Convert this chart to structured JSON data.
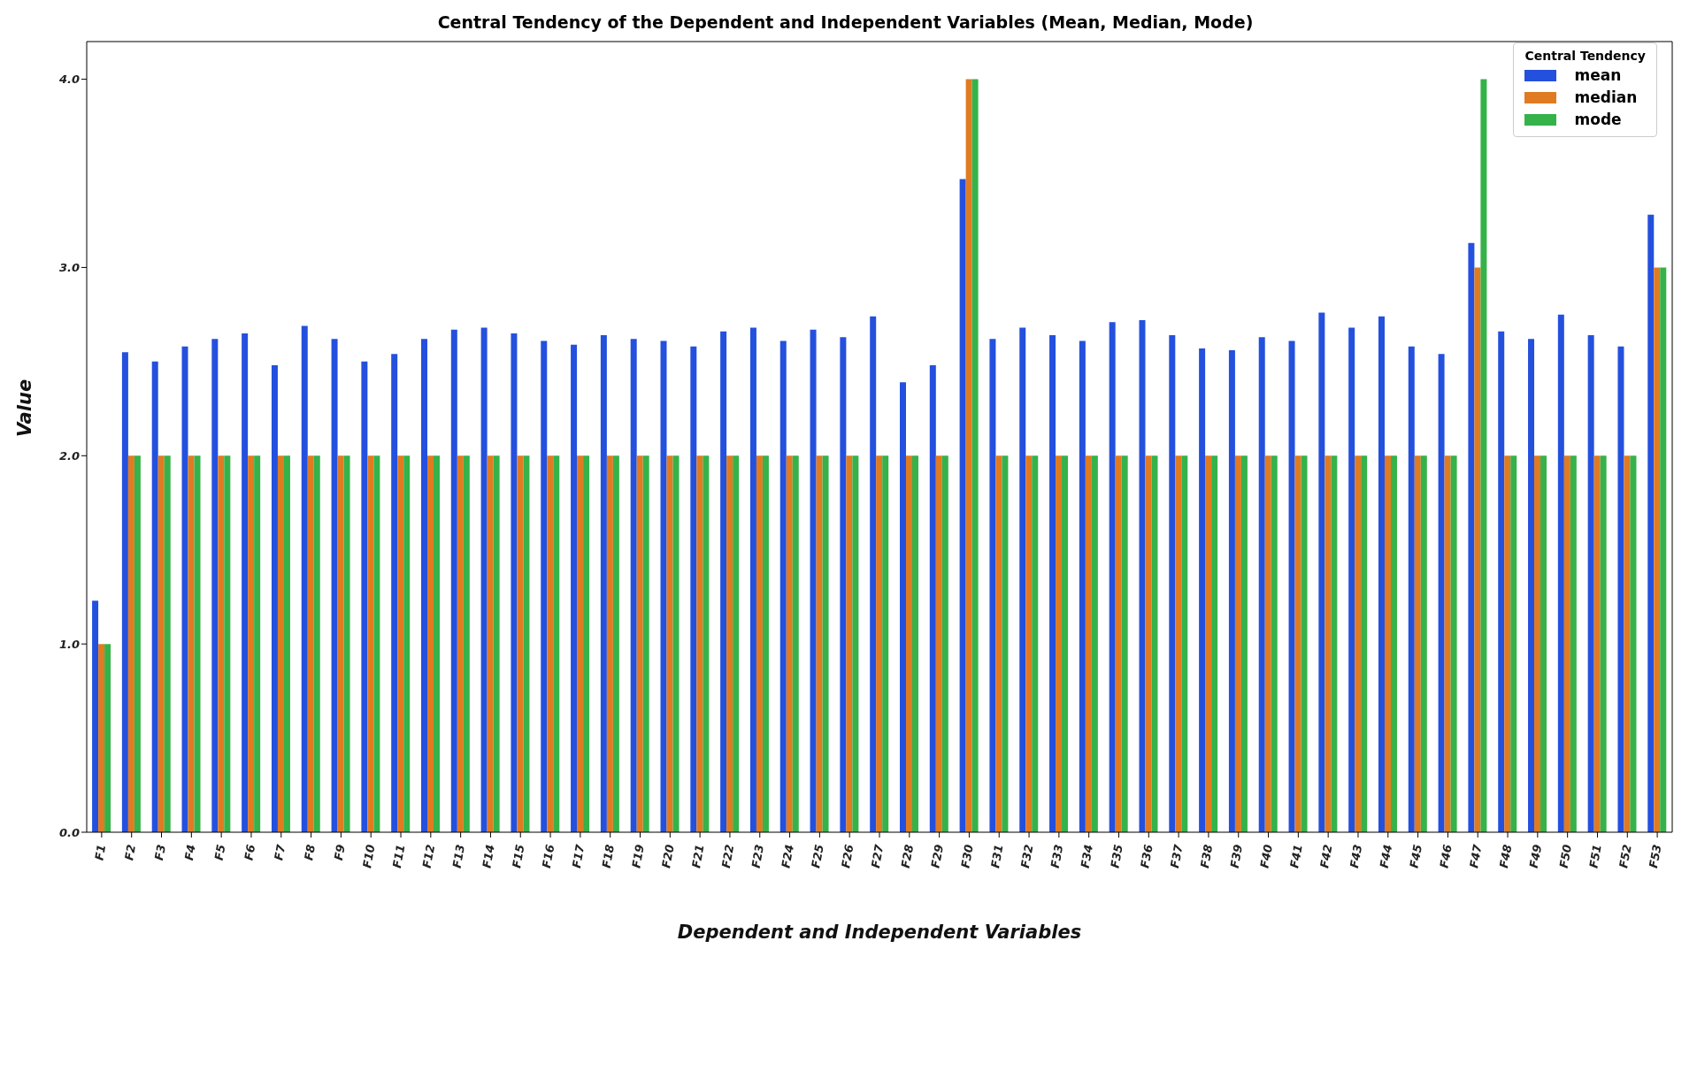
{
  "chart_data": {
    "type": "bar",
    "title": "Central Tendency of the Dependent and Independent Variables (Mean, Median, Mode)",
    "xlabel": "Dependent and Independent Variables",
    "ylabel": "Value",
    "legend_title": "Central Tendency",
    "categories": [
      "F1",
      "F2",
      "F3",
      "F4",
      "F5",
      "F6",
      "F7",
      "F8",
      "F9",
      "F10",
      "F11",
      "F12",
      "F13",
      "F14",
      "F15",
      "F16",
      "F17",
      "F18",
      "F19",
      "F20",
      "F21",
      "F22",
      "F23",
      "F24",
      "F25",
      "F26",
      "F27",
      "F28",
      "F29",
      "F30",
      "F31",
      "F32",
      "F33",
      "F34",
      "F35",
      "F36",
      "F37",
      "F38",
      "F39",
      "F40",
      "F41",
      "F42",
      "F43",
      "F44",
      "F45",
      "F46",
      "F47",
      "F48",
      "F49",
      "F50",
      "F51",
      "F52",
      "F53"
    ],
    "series": [
      {
        "name": "mean",
        "color": "#2450de",
        "values": [
          1.23,
          2.55,
          2.5,
          2.58,
          2.62,
          2.65,
          2.48,
          2.69,
          2.62,
          2.5,
          2.54,
          2.62,
          2.67,
          2.68,
          2.65,
          2.61,
          2.59,
          2.64,
          2.62,
          2.61,
          2.58,
          2.66,
          2.68,
          2.61,
          2.67,
          2.63,
          2.74,
          2.39,
          2.48,
          3.47,
          2.62,
          2.68,
          2.64,
          2.61,
          2.71,
          2.72,
          2.64,
          2.57,
          2.56,
          2.63,
          2.61,
          2.76,
          2.68,
          2.74,
          2.58,
          2.54,
          3.13,
          2.66,
          2.62,
          2.75,
          2.64,
          2.58,
          3.28
        ]
      },
      {
        "name": "median",
        "color": "#e07b22",
        "values": [
          1,
          2,
          2,
          2,
          2,
          2,
          2,
          2,
          2,
          2,
          2,
          2,
          2,
          2,
          2,
          2,
          2,
          2,
          2,
          2,
          2,
          2,
          2,
          2,
          2,
          2,
          2,
          2,
          2,
          4,
          2,
          2,
          2,
          2,
          2,
          2,
          2,
          2,
          2,
          2,
          2,
          2,
          2,
          2,
          2,
          2,
          3,
          2,
          2,
          2,
          2,
          2,
          3
        ]
      },
      {
        "name": "mode",
        "color": "#35b24a",
        "values": [
          1,
          2,
          2,
          2,
          2,
          2,
          2,
          2,
          2,
          2,
          2,
          2,
          2,
          2,
          2,
          2,
          2,
          2,
          2,
          2,
          2,
          2,
          2,
          2,
          2,
          2,
          2,
          2,
          2,
          4,
          2,
          2,
          2,
          2,
          2,
          2,
          2,
          2,
          2,
          2,
          2,
          2,
          2,
          2,
          2,
          2,
          4,
          2,
          2,
          2,
          2,
          2,
          3
        ]
      }
    ],
    "ylim": [
      0,
      4.2
    ],
    "yticks": [
      {
        "value": 0,
        "label": "0.0"
      },
      {
        "value": 1,
        "label": "1.0"
      },
      {
        "value": 2,
        "label": "2.0"
      },
      {
        "value": 3,
        "label": "3.0"
      },
      {
        "value": 4,
        "label": "4.0"
      }
    ],
    "legend": "top right",
    "grid": false
  }
}
